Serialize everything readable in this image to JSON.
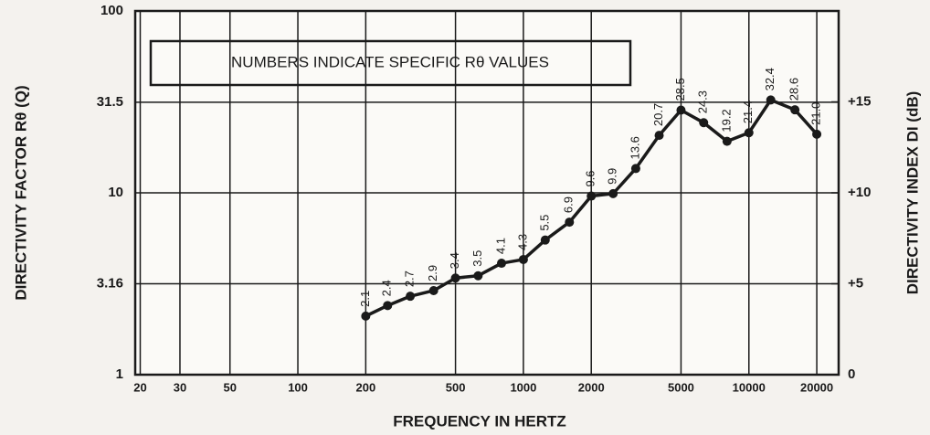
{
  "chart_data": {
    "type": "line",
    "annotation": "NUMBERS INDICATE SPECIFIC Rθ VALUES",
    "xlabel": "FREQUENCY IN HERTZ",
    "ylabel": "DIRECTIVITY FACTOR Rθ (Q)",
    "y2label": "DIRECTIVITY INDEX DI (dB)",
    "xscale": "log",
    "yscale": "log",
    "x": [
      200,
      250,
      315,
      400,
      500,
      630,
      800,
      1000,
      1250,
      1600,
      2000,
      2500,
      3150,
      4000,
      5000,
      6300,
      8000,
      10000,
      12500,
      16000,
      20000
    ],
    "series": [
      {
        "name": "Rθ",
        "color": "#1a1a1a",
        "values": [
          2.1,
          2.4,
          2.7,
          2.9,
          3.4,
          3.5,
          4.1,
          4.3,
          5.5,
          6.9,
          9.6,
          9.9,
          13.6,
          20.7,
          28.5,
          24.3,
          19.2,
          21.4,
          32.4,
          28.6,
          21.0
        ],
        "value_labels": [
          "2.1",
          "2.4",
          "2.7",
          "2.9",
          "3.4",
          "3.5",
          "4.1",
          "4.3",
          "5.5",
          "6.9",
          "9.6",
          "9.9",
          "13.6",
          "20.7",
          "28.5",
          "24.3",
          "19.2",
          "21.4",
          "32.4",
          "28.6",
          "21.0"
        ]
      }
    ],
    "xlim": [
      19,
      25000
    ],
    "xticks": [
      20,
      30,
      50,
      100,
      200,
      500,
      1000,
      2000,
      5000,
      10000,
      20000
    ],
    "ylim": [
      1,
      100
    ],
    "yticks": [
      1,
      3.16,
      10,
      31.5,
      100
    ],
    "y2lim": [
      0,
      20
    ],
    "y2ticks": [
      0,
      {
        "value": 5,
        "label": "+5"
      },
      {
        "value": 10,
        "label": "+10"
      },
      {
        "value": 15,
        "label": "+15"
      }
    ],
    "grid": true
  }
}
